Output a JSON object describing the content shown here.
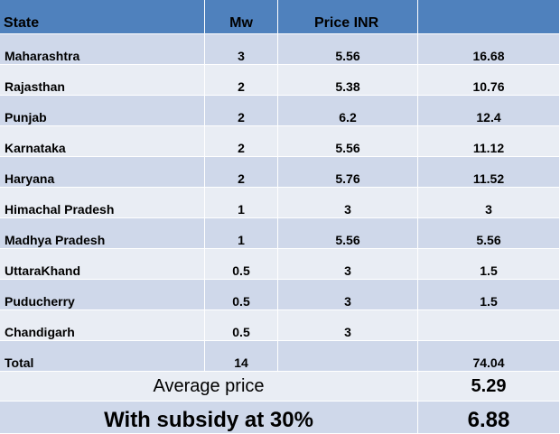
{
  "header": {
    "state": "State",
    "mw": "Mw",
    "price": "Price INR",
    "total": ""
  },
  "rows": [
    {
      "state": "Maharashtra",
      "mw": "3",
      "price": "5.56",
      "total": "16.68"
    },
    {
      "state": "Rajasthan",
      "mw": "2",
      "price": "5.38",
      "total": "10.76"
    },
    {
      "state": "Punjab",
      "mw": "2",
      "price": "6.2",
      "total": "12.4"
    },
    {
      "state": "Karnataka",
      "mw": "2",
      "price": "5.56",
      "total": "11.12"
    },
    {
      "state": "Haryana",
      "mw": "2",
      "price": "5.76",
      "total": "11.52"
    },
    {
      "state": "Himachal Pradesh",
      "mw": "1",
      "price": "3",
      "total": "3"
    },
    {
      "state": "Madhya Pradesh",
      "mw": "1",
      "price": "5.56",
      "total": "5.56"
    },
    {
      "state": "UttaraKhand",
      "mw": "0.5",
      "price": "3",
      "total": "1.5"
    },
    {
      "state": "Puducherry",
      "mw": "0.5",
      "price": "3",
      "total": "1.5"
    },
    {
      "state": "Chandigarh",
      "mw": "0.5",
      "price": "3",
      "total": ""
    }
  ],
  "total_row": {
    "label": "Total",
    "mw": "14",
    "price": "",
    "total": "74.04"
  },
  "average_row": {
    "label": "Average price",
    "value": "5.29"
  },
  "subsidy_row": {
    "label": "With subsidy at 30%",
    "value": "6.88"
  },
  "colors": {
    "header": "#4f81bd",
    "row_dark": "#cfd8ea",
    "row_light": "#e9edf4"
  }
}
